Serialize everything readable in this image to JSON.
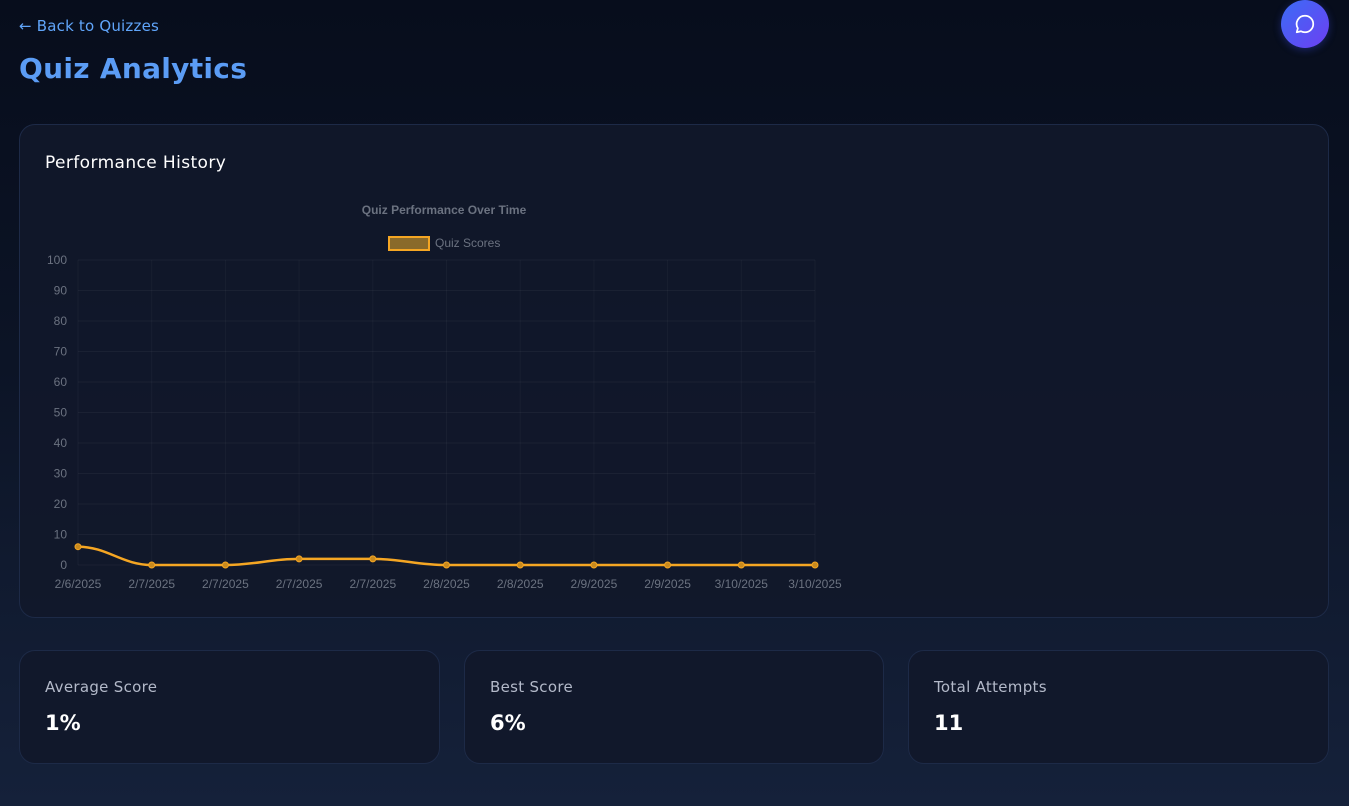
{
  "nav": {
    "back_label": "← Back to Quizzes"
  },
  "header": {
    "title": "Quiz Analytics",
    "chat_icon": "chat-bubble-icon"
  },
  "performance": {
    "heading": "Performance History"
  },
  "chart_data": {
    "type": "line",
    "title": "Quiz Performance Over Time",
    "legend_position": "top",
    "grid": true,
    "ylim": [
      0,
      100
    ],
    "y_ticks": [
      0,
      10,
      20,
      30,
      40,
      50,
      60,
      70,
      80,
      90,
      100
    ],
    "categories": [
      "2/6/2025",
      "2/7/2025",
      "2/7/2025",
      "2/7/2025",
      "2/7/2025",
      "2/8/2025",
      "2/8/2025",
      "2/9/2025",
      "2/9/2025",
      "3/10/2025",
      "3/10/2025"
    ],
    "series": [
      {
        "name": "Quiz Scores",
        "color": "#f5a623",
        "values": [
          6,
          0,
          0,
          2,
          2,
          0,
          0,
          0,
          0,
          0,
          0
        ]
      }
    ]
  },
  "stats": [
    {
      "label": "Average Score",
      "value": "1%"
    },
    {
      "label": "Best Score",
      "value": "6%"
    },
    {
      "label": "Total Attempts",
      "value": "11"
    }
  ],
  "colors": {
    "accent": "#5b9cf5",
    "series": "#f5a623",
    "chat_start": "#3b6cf6",
    "chat_end": "#6d3ff2"
  }
}
